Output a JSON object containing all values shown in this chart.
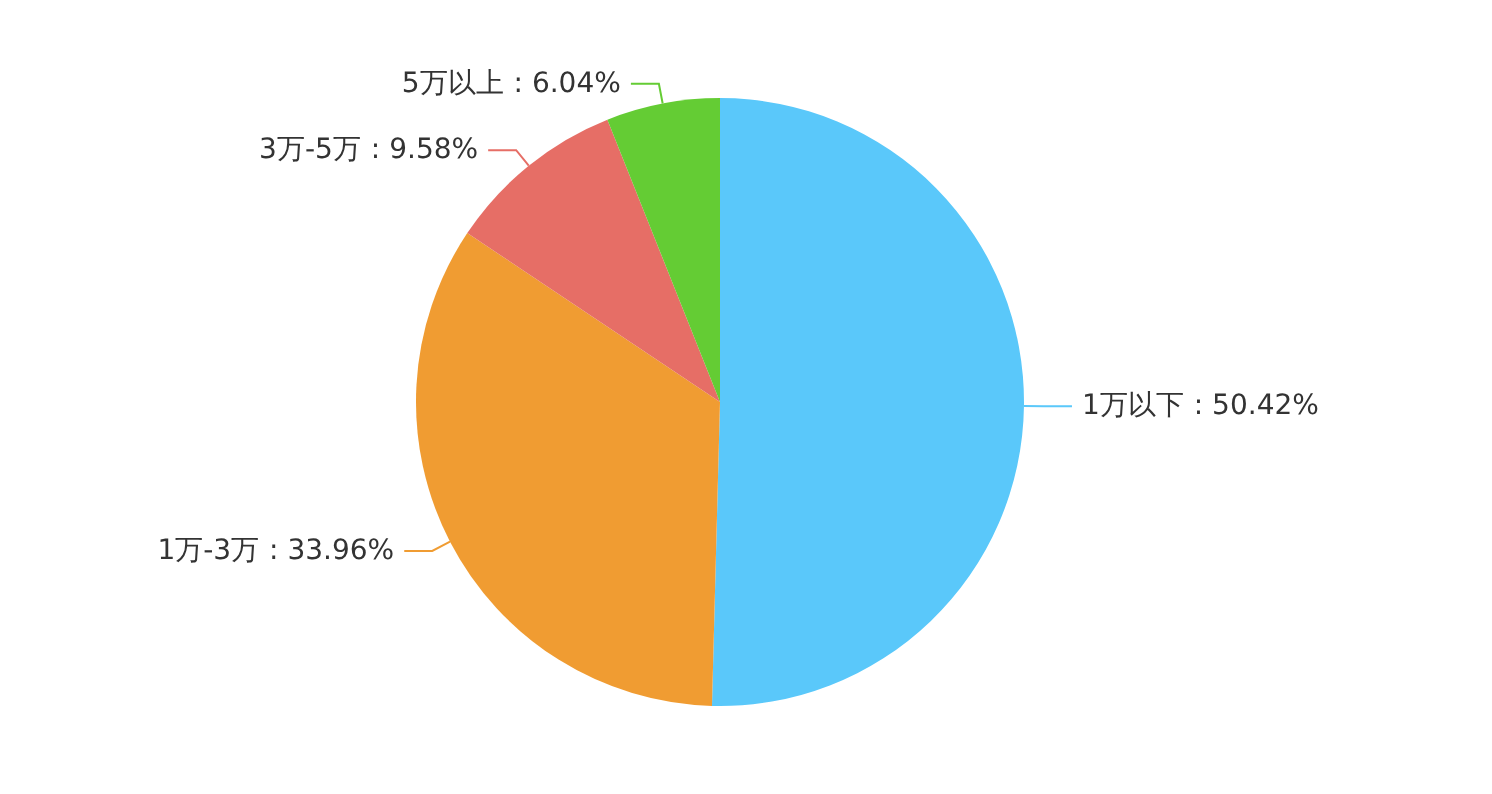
{
  "chart_data": {
    "type": "pie",
    "categories": [
      "1万以下",
      "1万-3万",
      "3万-5万",
      "5万以上"
    ],
    "values": [
      50.42,
      33.96,
      9.58,
      6.04
    ],
    "value_labels": [
      ": 50.42%",
      ": 33.96%",
      ": 9.58%",
      ": 6.04%"
    ],
    "colors": [
      "#5ac8fa",
      "#f09c32",
      "#e66e66",
      "#64cc34"
    ]
  }
}
